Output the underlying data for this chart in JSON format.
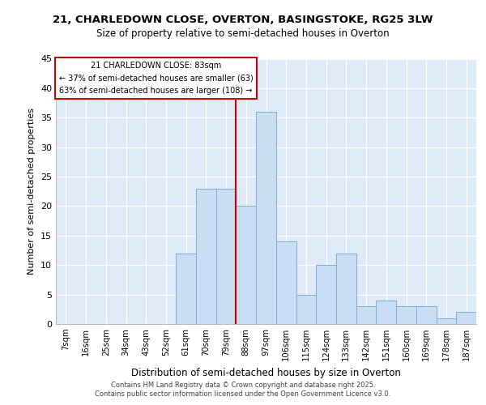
{
  "title_line1": "21, CHARLEDOWN CLOSE, OVERTON, BASINGSTOKE, RG25 3LW",
  "title_line2": "Size of property relative to semi-detached houses in Overton",
  "xlabel": "Distribution of semi-detached houses by size in Overton",
  "ylabel": "Number of semi-detached properties",
  "categories": [
    "7sqm",
    "16sqm",
    "25sqm",
    "34sqm",
    "43sqm",
    "52sqm",
    "61sqm",
    "70sqm",
    "79sqm",
    "88sqm",
    "97sqm",
    "106sqm",
    "115sqm",
    "124sqm",
    "133sqm",
    "142sqm",
    "151sqm",
    "160sqm",
    "169sqm",
    "178sqm",
    "187sqm"
  ],
  "values": [
    0,
    0,
    0,
    0,
    0,
    0,
    12,
    23,
    23,
    20,
    36,
    14,
    5,
    10,
    12,
    3,
    4,
    3,
    3,
    1,
    2
  ],
  "bar_color": "#c9ddf2",
  "bar_edge_color": "#7bafd4",
  "background_color": "#deeaf7",
  "grid_color": "#ffffff",
  "annotation_box_color": "#ffffff",
  "annotation_box_edge": "#cc0000",
  "vline_color": "#cc0000",
  "annotation_text_line1": "21 CHARLEDOWN CLOSE: 83sqm",
  "annotation_text_line2": "← 37% of semi-detached houses are smaller (63)",
  "annotation_text_line3": "63% of semi-detached houses are larger (108) →",
  "ylim": [
    0,
    45
  ],
  "yticks": [
    0,
    5,
    10,
    15,
    20,
    25,
    30,
    35,
    40,
    45
  ],
  "footer_line1": "Contains HM Land Registry data © Crown copyright and database right 2025.",
  "footer_line2": "Contains public sector information licensed under the Open Government Licence v3.0."
}
